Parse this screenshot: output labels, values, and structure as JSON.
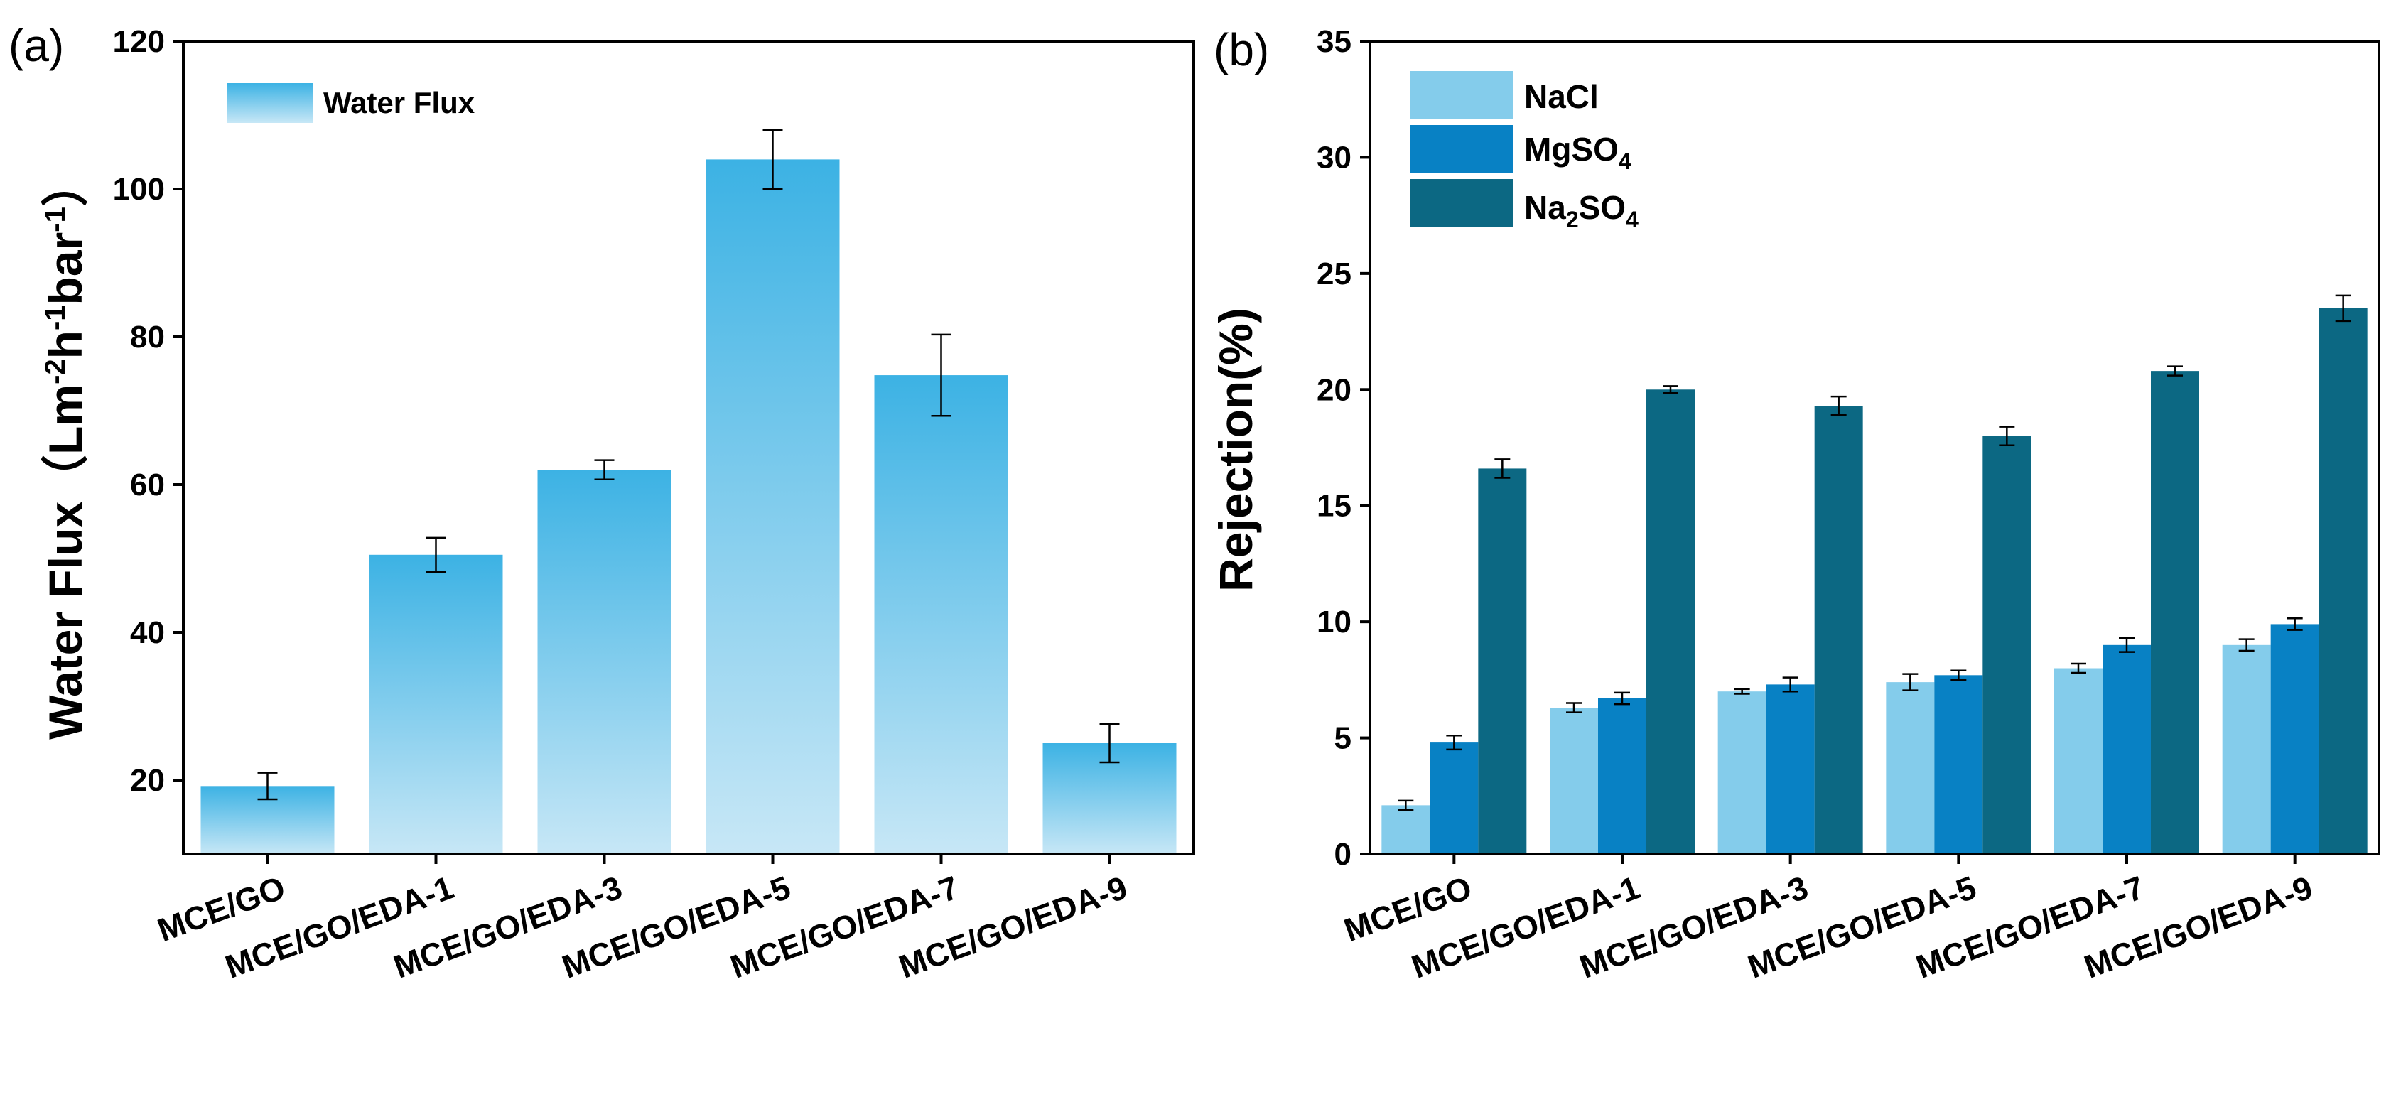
{
  "chart_data": [
    {
      "panel": "(a)",
      "type": "bar",
      "title": "",
      "xlabel": "",
      "ylabel": "Water Flux（Lm⁻²h⁻¹bar⁻¹）",
      "ylabel_parts": {
        "main": "Water Flux",
        "open": "（Lm",
        "sup1": "-2",
        "mid": "h",
        "sup2": "-1",
        "end": "bar",
        "sup3": "-1",
        "close": "）"
      },
      "ylim": [
        10,
        120
      ],
      "yticks": [
        20,
        40,
        60,
        80,
        100,
        120
      ],
      "grid": false,
      "legend": {
        "position": "top-left",
        "entries": [
          "Water Flux"
        ]
      },
      "categories": [
        "MCE/GO",
        "MCE/GO/EDA-1",
        "MCE/GO/EDA-3",
        "MCE/GO/EDA-5",
        "MCE/GO/EDA-7",
        "MCE/GO/EDA-9"
      ],
      "series": [
        {
          "name": "Water Flux",
          "color": "#3cb2e4",
          "color_light": "#c7e7f6",
          "values": [
            19.2,
            50.5,
            62.0,
            104.0,
            74.8,
            25.0
          ],
          "errors": [
            1.8,
            2.3,
            1.3,
            4.0,
            5.5,
            2.6
          ]
        }
      ]
    },
    {
      "panel": "(b)",
      "type": "bar",
      "title": "",
      "xlabel": "",
      "ylabel": "Rejection(%)",
      "ylim": [
        0,
        35
      ],
      "yticks": [
        0,
        5,
        10,
        15,
        20,
        25,
        30,
        35
      ],
      "grid": false,
      "legend": {
        "position": "top-left",
        "entries": [
          "NaCl",
          "MgSO4",
          "Na2SO4"
        ]
      },
      "categories": [
        "MCE/GO",
        "MCE/GO/EDA-1",
        "MCE/GO/EDA-3",
        "MCE/GO/EDA-5",
        "MCE/GO/EDA-7",
        "MCE/GO/EDA-9"
      ],
      "series": [
        {
          "name": "NaCl",
          "label_base": "NaCl",
          "label_sub1": "",
          "label_mid": "",
          "label_sub2": "",
          "color": "#84cceb",
          "values": [
            2.1,
            6.3,
            7.0,
            7.4,
            8.0,
            9.0
          ],
          "errors": [
            0.2,
            0.2,
            0.1,
            0.35,
            0.2,
            0.25
          ]
        },
        {
          "name": "MgSO4",
          "label_base": "MgSO",
          "label_sub1": "",
          "label_mid": "",
          "label_sub2": "4",
          "color": "#0881c4",
          "values": [
            4.8,
            6.7,
            7.3,
            7.7,
            9.0,
            9.9
          ],
          "errors": [
            0.3,
            0.25,
            0.3,
            0.2,
            0.3,
            0.25
          ]
        },
        {
          "name": "Na2SO4",
          "label_base": "Na",
          "label_sub1": "2",
          "label_mid": "SO",
          "label_sub2": "4",
          "color": "#0c6883",
          "values": [
            16.6,
            20.0,
            19.3,
            18.0,
            20.8,
            23.5
          ],
          "errors": [
            0.4,
            0.15,
            0.4,
            0.4,
            0.2,
            0.55
          ]
        }
      ]
    }
  ]
}
